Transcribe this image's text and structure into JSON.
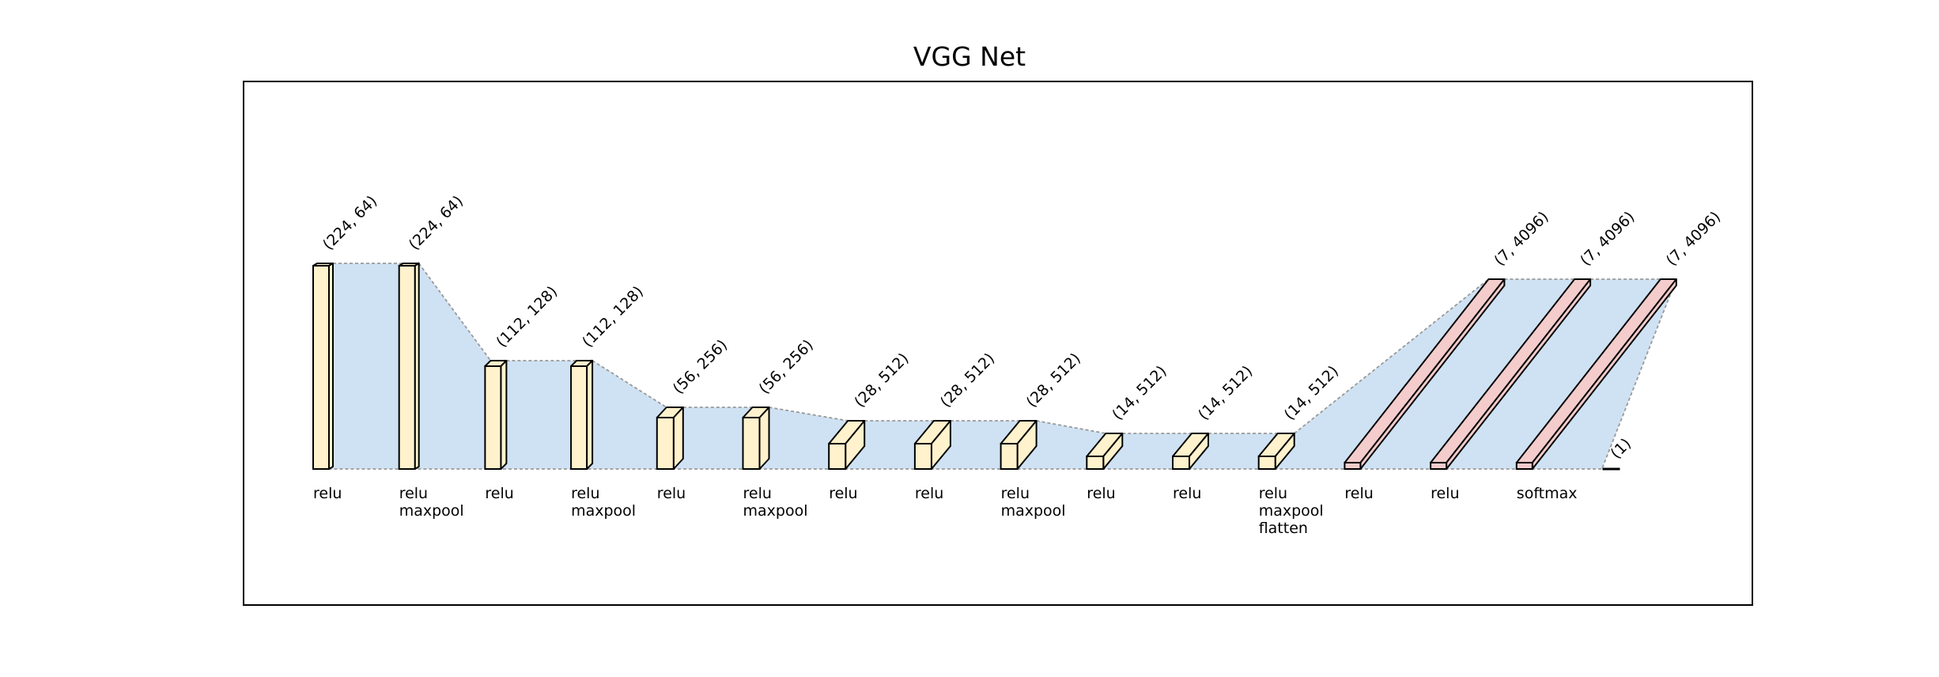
{
  "title": "VGG Net",
  "colors": {
    "conv_block": "#fff2cc",
    "dense_block": "#f4cccc",
    "connection": "#cfe2f3",
    "connection_line": "#999999",
    "outline": "#000000"
  },
  "layers": [
    {
      "kind": "conv",
      "dims": "(224, 64)",
      "activation": [
        "relu"
      ]
    },
    {
      "kind": "conv",
      "dims": "(224, 64)",
      "activation": [
        "relu",
        "maxpool"
      ]
    },
    {
      "kind": "conv",
      "dims": "(112, 128)",
      "activation": [
        "relu"
      ]
    },
    {
      "kind": "conv",
      "dims": "(112, 128)",
      "activation": [
        "relu",
        "maxpool"
      ]
    },
    {
      "kind": "conv",
      "dims": "(56, 256)",
      "activation": [
        "relu"
      ]
    },
    {
      "kind": "conv",
      "dims": "(56, 256)",
      "activation": [
        "relu",
        "maxpool"
      ]
    },
    {
      "kind": "conv",
      "dims": "(28, 512)",
      "activation": [
        "relu"
      ]
    },
    {
      "kind": "conv",
      "dims": "(28, 512)",
      "activation": [
        "relu"
      ]
    },
    {
      "kind": "conv",
      "dims": "(28, 512)",
      "activation": [
        "relu",
        "maxpool"
      ]
    },
    {
      "kind": "conv",
      "dims": "(14, 512)",
      "activation": [
        "relu"
      ]
    },
    {
      "kind": "conv",
      "dims": "(14, 512)",
      "activation": [
        "relu"
      ]
    },
    {
      "kind": "conv",
      "dims": "(14, 512)",
      "activation": [
        "relu",
        "maxpool",
        "flatten"
      ]
    },
    {
      "kind": "dense",
      "dims": "(7, 4096)",
      "activation": [
        "relu"
      ]
    },
    {
      "kind": "dense",
      "dims": "(7, 4096)",
      "activation": [
        "relu"
      ]
    },
    {
      "kind": "dense",
      "dims": "(7, 4096)",
      "activation": [
        "softmax"
      ]
    },
    {
      "kind": "output",
      "dims": "(1)",
      "activation": []
    }
  ]
}
